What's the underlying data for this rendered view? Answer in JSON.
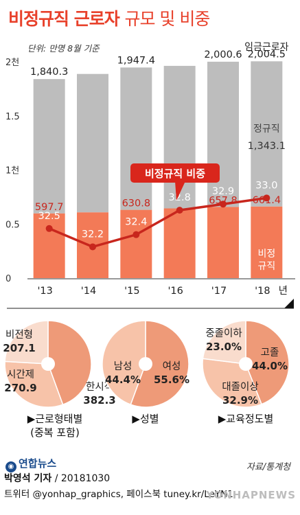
{
  "header": {
    "title": "비정규직 근로자",
    "subtitle": "규모 및 비중",
    "unit": "단위: 만명  8월 기준"
  },
  "chart_data": [
    {
      "type": "bar",
      "categories": [
        "'13",
        "'14",
        "'15",
        "'16",
        "'17",
        "'18"
      ],
      "x_suffix": "년",
      "yticks": [
        "0",
        "0.5",
        "1천",
        "1.5",
        "2천"
      ],
      "ylim": [
        0,
        2000
      ],
      "series": [
        {
          "name": "비정규직",
          "values": [
            597.7,
            607.7,
            630.8,
            644.4,
            657.8,
            661.4
          ],
          "labels": [
            "597.7",
            "",
            "630.8",
            "",
            "657.8",
            "661.4"
          ]
        },
        {
          "name": "정규직",
          "values": [
            1242.6,
            1280.0,
            1316.6,
            1318.0,
            1343.0,
            1343.1
          ],
          "labels": [
            "",
            "",
            "",
            "",
            "",
            "1,343.1"
          ]
        }
      ],
      "total_labels": [
        "1,840.3",
        "",
        "1,947.4",
        "",
        "2,000.6",
        "2,004.5"
      ],
      "total_series_name": "임금근로자",
      "share": {
        "name": "비정규직 비중",
        "values": [
          32.5,
          32.2,
          32.4,
          32.8,
          32.9,
          33.0
        ],
        "labels": [
          "32.5",
          "32.2",
          "32.4",
          "32.8",
          "32.9",
          "33.0"
        ],
        "ylim": [
          31.8,
          33.6
        ]
      },
      "grid": false
    },
    {
      "type": "pie",
      "title": "▶근로형태별\n(중복 포함)",
      "slices": [
        {
          "label": "한시적",
          "value": 382.3,
          "display": "382.3",
          "color": "#ee9a78"
        },
        {
          "label": "시간제",
          "value": 270.9,
          "display": "270.9",
          "color": "#f7c3a9"
        },
        {
          "label": "비전형",
          "value": 207.1,
          "display": "207.1",
          "color": "#f9dccd"
        }
      ]
    },
    {
      "type": "pie",
      "title": "▶성별",
      "slices": [
        {
          "label": "여성",
          "value": 55.6,
          "display": "55.6%",
          "color": "#ee9a78"
        },
        {
          "label": "남성",
          "value": 44.4,
          "display": "44.4%",
          "color": "#f7c3a9"
        }
      ]
    },
    {
      "type": "pie",
      "title": "▶교육정도별",
      "slices": [
        {
          "label": "고졸",
          "value": 44.0,
          "display": "44.0%",
          "color": "#ee9a78"
        },
        {
          "label": "대졸이상",
          "value": 32.9,
          "display": "32.9%",
          "color": "#f7c3a9"
        },
        {
          "label": "중졸이하",
          "value": 23.0,
          "display": "23.0%",
          "color": "#f9dccd"
        }
      ]
    }
  ],
  "colors": {
    "title": "#e8412b",
    "regular": "#bdbdbd",
    "irregular": "#f37a57",
    "line": "#c8261d",
    "callout": "#d9261c"
  },
  "footer": {
    "source": "자료/통계청",
    "author": "박영석 기자",
    "date": "/ 20181030",
    "social": "트위터 @yonhap_graphics, 페이스북 tuney.kr/LeYN1",
    "logo": "연합뉴스",
    "watermark": "YONHAPNEWS"
  }
}
